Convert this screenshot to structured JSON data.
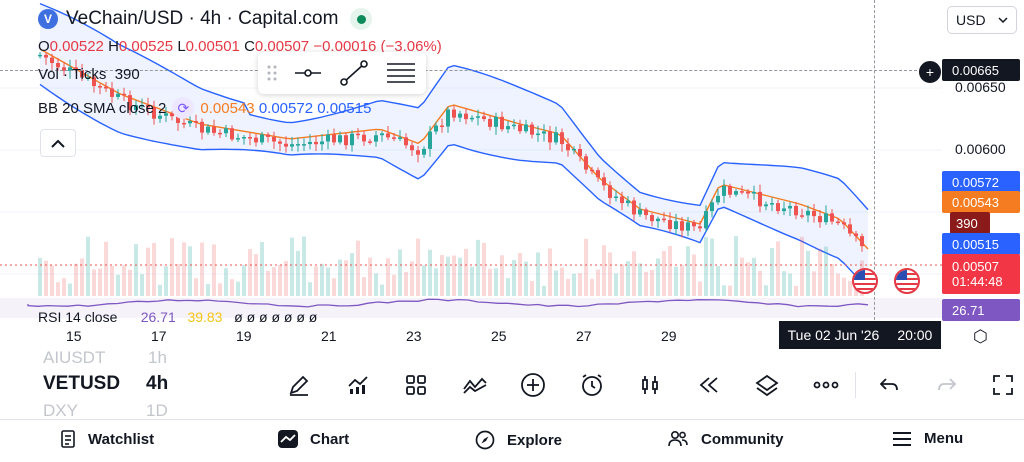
{
  "header": {
    "logo_glyph": "V",
    "title": "VeChain/USD · 4h · Capital.com",
    "currency": "USD",
    "live_status_color": "#0b8a5a"
  },
  "ohlc": {
    "o_label": "O",
    "o_val": "0.00522",
    "h_label": "H",
    "h_val": "0.00525",
    "l_label": "L",
    "l_val": "0.00501",
    "c_label": "C",
    "c_val": "0.00507",
    "change": "−0.00016 (−3.06%)"
  },
  "volume": {
    "label": "Vol · Ticks",
    "value": "390"
  },
  "bollinger": {
    "label": "BB 20 SMA close 2",
    "basis": "0.00543",
    "upper": "0.00572",
    "lower": "0.00515",
    "basis_color": "#f57c20",
    "band_color": "#2962ff"
  },
  "rsi": {
    "label": "RSI 14 close",
    "value": "26.71",
    "value2": "39.83",
    "marker": "ø ø ø ø ø ø ø"
  },
  "price_scale": {
    "crosshair_price": "0.00665",
    "ticks": [
      "0.00650",
      "0.00600"
    ],
    "upper_band_label": "0.00572",
    "basis_label": "0.00543",
    "volume_label": "390",
    "lower_band_label": "0.00515",
    "last_price": "0.00507",
    "countdown": "01:44:48",
    "rsi_label": "26.71"
  },
  "x_axis": [
    "15",
    "17",
    "19",
    "21",
    "23",
    "25",
    "27",
    "29"
  ],
  "crosshair_time": {
    "date": "Tue 02 Jun '26",
    "time": "20:00"
  },
  "symbols": {
    "above": "AIUSDT",
    "above_tf": "1h",
    "current": "VETUSD",
    "current_tf": "4h",
    "below": "DXY",
    "below_tf": "1D"
  },
  "toolbar_icons": [
    "pencil-icon",
    "indicators-icon",
    "layout-grid-icon",
    "compare-icon",
    "add-icon",
    "alert-clock-icon",
    "candles-icon",
    "replay-icon",
    "layers-icon",
    "more-icon"
  ],
  "nav": {
    "watchlist": "Watchlist",
    "chart": "Chart",
    "explore": "Explore",
    "community": "Community",
    "menu": "Menu"
  },
  "colors": {
    "up": "#26a69a",
    "down": "#ef5350",
    "upper_band_tag": "#2962ff",
    "basis_tag": "#f57c20",
    "volume_tag": "#8b1a1a",
    "last_price_tag": "#f23645",
    "rsi_tag": "#7e57c2"
  }
}
